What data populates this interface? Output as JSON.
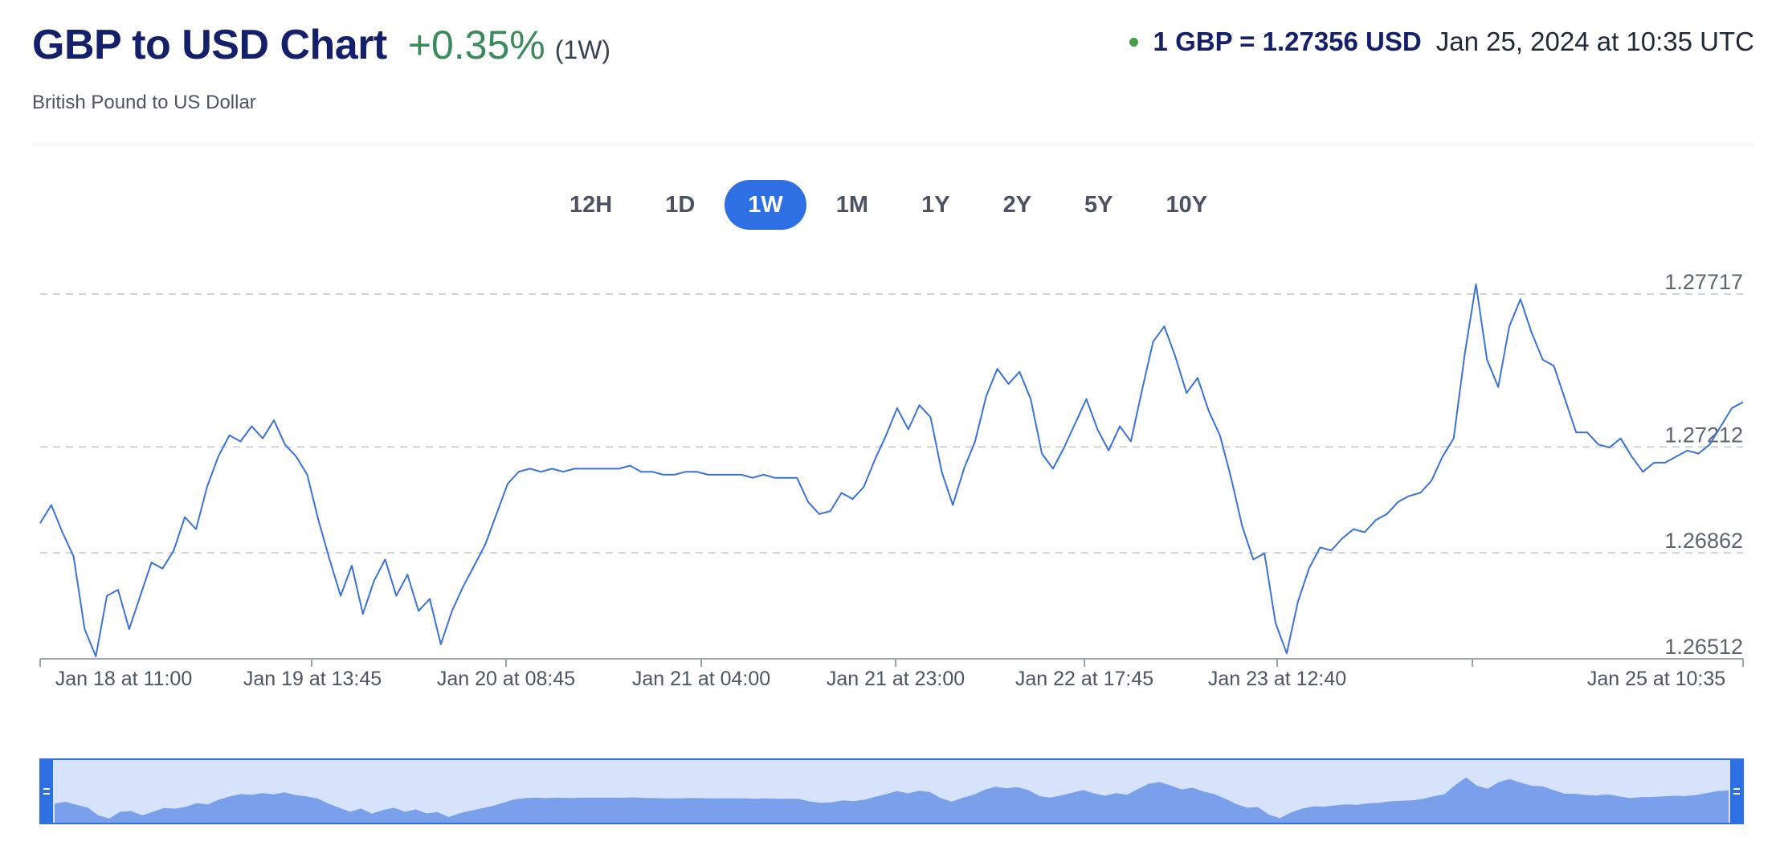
{
  "header": {
    "title": "GBP to USD Chart",
    "change": "+0.35%",
    "period": "(1W)",
    "subtitle": "British Pound to US Dollar",
    "rate": "1 GBP = 1.27356 USD",
    "timestamp": "Jan 25, 2024 at 10:35 UTC"
  },
  "range_tabs": [
    "12H",
    "1D",
    "1W",
    "1M",
    "1Y",
    "2Y",
    "5Y",
    "10Y"
  ],
  "active_tab": "1W",
  "colors": {
    "line": "#3a72d6",
    "accent": "#2e6fe3",
    "positive": "#3b8a5c",
    "navigator_fill": "#7aa0ec",
    "navigator_bg": "#d7e3fa",
    "navigator_handle": "#2e6fe3"
  },
  "chart_data": {
    "type": "line",
    "title": "GBP to USD Chart",
    "series": [
      {
        "values": [
          1.2696,
          1.2702,
          1.2693,
          1.2685,
          1.2661,
          1.2652,
          1.2672,
          1.2674,
          1.2661,
          1.2672,
          1.2683,
          1.2681,
          1.2687,
          1.2698,
          1.2694,
          1.2708,
          1.2718,
          1.2725,
          1.2723,
          1.2728,
          1.2724,
          1.273,
          1.2722,
          1.2718,
          1.2712,
          1.2697,
          1.2684,
          1.2672,
          1.2682,
          1.2666,
          1.2677,
          1.2684,
          1.2672,
          1.2679,
          1.2667,
          1.2671,
          1.2656,
          1.2667,
          1.2675,
          1.2682,
          1.2689,
          1.2699,
          1.2709,
          1.2713,
          1.2714,
          1.2713,
          1.2714,
          1.2713,
          1.2714,
          1.2714,
          1.2714,
          1.2714,
          1.2714,
          1.2715,
          1.2713,
          1.2713,
          1.2712,
          1.2712,
          1.2713,
          1.2713,
          1.2712,
          1.2712,
          1.2712,
          1.2712,
          1.2711,
          1.2712,
          1.2711,
          1.2711,
          1.2711,
          1.2703,
          1.2699,
          1.27,
          1.2706,
          1.2704,
          1.2708,
          1.2717,
          1.2725,
          1.2734,
          1.2727,
          1.2735,
          1.2731,
          1.2713,
          1.2702,
          1.2714,
          1.2723,
          1.2738,
          1.2747,
          1.2742,
          1.2746,
          1.2737,
          1.2719,
          1.2714,
          1.2721,
          1.2729,
          1.2737,
          1.2727,
          1.272,
          1.2728,
          1.2723,
          1.274,
          1.2756,
          1.2761,
          1.2751,
          1.2739,
          1.2744,
          1.2733,
          1.2725,
          1.2711,
          1.2695,
          1.2684,
          1.2686,
          1.2663,
          1.2653,
          1.267,
          1.2681,
          1.2688,
          1.2687,
          1.2691,
          1.2694,
          1.2693,
          1.2697,
          1.2699,
          1.2703,
          1.2705,
          1.2706,
          1.271,
          1.2718,
          1.2724,
          1.2752,
          1.2775,
          1.275,
          1.2741,
          1.2761,
          1.277,
          1.2759,
          1.275,
          1.2748,
          1.2737,
          1.2726,
          1.2726,
          1.2722,
          1.2721,
          1.2724,
          1.2718,
          1.2713,
          1.2716,
          1.2716,
          1.2718,
          1.272,
          1.2719,
          1.2722,
          1.2728,
          1.2734,
          1.2736
        ],
        "x_tick_positions": [
          0,
          11,
          22,
          33,
          44,
          55,
          66,
          77,
          88,
          99,
          110,
          121,
          132,
          143,
          148
        ]
      }
    ],
    "x_ticks": [
      "Jan 18 at 11:00",
      "Jan 19 at 13:45",
      "Jan 20 at 08:45",
      "Jan 21 at 04:00",
      "Jan 21 at 23:00",
      "Jan 22 at 17:45",
      "Jan 23 at 12:40",
      "Jan 25 at 10:35"
    ],
    "x_tick_indices": [
      2,
      23,
      41,
      61,
      80,
      99,
      118,
      145
    ],
    "y_ticks": [
      1.26512,
      1.26862,
      1.27212,
      1.27717
    ],
    "ylim": [
      1.26512,
      1.27717
    ],
    "grid": true,
    "legend": "none"
  }
}
